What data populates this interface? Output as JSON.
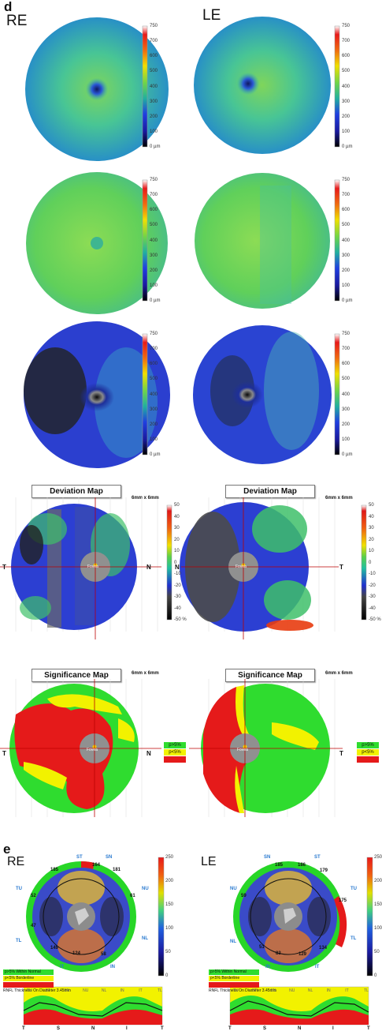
{
  "panels": {
    "d_label": "d",
    "e_label": "e"
  },
  "eyes": {
    "right": "RE",
    "left": "LE"
  },
  "thickness_scale": {
    "ticks": [
      "750",
      "700",
      "600",
      "500",
      "400",
      "300",
      "200",
      "100",
      "0 µm"
    ]
  },
  "deviation_scale": {
    "ticks": [
      "50",
      "40",
      "30",
      "20",
      "10",
      "0",
      "-10",
      "-20",
      "-30",
      "-40",
      "-50 %"
    ]
  },
  "rnfl_scale": {
    "ticks": [
      "250",
      "200",
      "150",
      "100",
      "50",
      "0"
    ]
  },
  "deviation": {
    "title": "Deviation Map",
    "size": "6mm x 6mm",
    "fovea": "Fovea",
    "T": "T",
    "N": "N"
  },
  "significance": {
    "title": "Significance Map",
    "size": "6mm x 6mm",
    "fovea": "Fovea",
    "T": "T",
    "N": "N",
    "legend": [
      "p>5%",
      "p<5%",
      "p<1%"
    ]
  },
  "rnfl": {
    "legend": [
      "p>5% Within Normal",
      "p<5% Borderline",
      "p<1% Outside Normal"
    ],
    "diameter_label": "RNFL Thickness On Diameter 3.45mm",
    "re_sectors": {
      "ST": "ST",
      "SN": "SN",
      "TU": "TU",
      "TL": "TL",
      "IT": "IT",
      "IN": "IN",
      "NU": "NU",
      "NL": "NL"
    },
    "le_sectors": {
      "SN": "SN",
      "ST": "ST",
      "NU": "NU",
      "NL": "NL",
      "TU": "TU",
      "TL": "TL",
      "IN": "IN",
      "IT": "IT"
    },
    "re_values": {
      "top": "164",
      "ti": "124",
      "b1": "58",
      "v1": "185",
      "v2": "181",
      "v3": "52",
      "v4": "61",
      "v5": "47",
      "v6": "149"
    },
    "le_values": {
      "top": "185",
      "top2": "186",
      "ti": "129",
      "b1": "83",
      "v1": "51",
      "v2": "134",
      "v3": "179",
      "v4": "59",
      "v5": "175"
    },
    "bottom_axis": [
      "T",
      "S",
      "N",
      "I",
      "T"
    ],
    "trace_labels": [
      "TU",
      "ST",
      "SN",
      "NU",
      "NL",
      "IN",
      "IT",
      "TL"
    ]
  },
  "colors": {
    "cold": "#0f0f10",
    "blue": "#2130c8",
    "green": "#54d44f",
    "yellow": "#f4f700",
    "red": "#e30b0b"
  }
}
